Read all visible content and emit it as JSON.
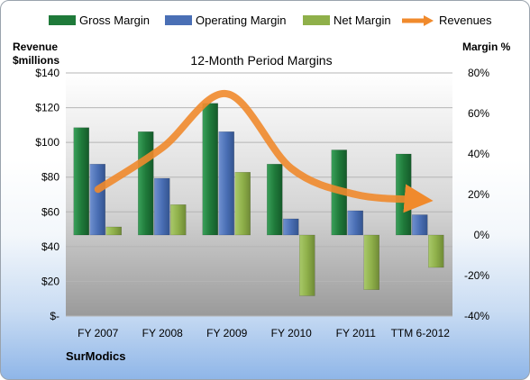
{
  "chart_data": {
    "type": "bar",
    "title": "12-Month Period Margins",
    "company": "SurModics",
    "left_axis_label_line1": "Revenue",
    "left_axis_label_line2": "$millions",
    "right_axis_label": "Margin %",
    "categories": [
      "FY 2007",
      "FY 2008",
      "FY 2009",
      "FY 2010",
      "FY 2011",
      "TTM 6-2012"
    ],
    "left_axis": {
      "ticks": [
        "$-",
        "$20",
        "$40",
        "$60",
        "$80",
        "$100",
        "$120",
        "$140"
      ],
      "ylim": [
        0,
        140
      ]
    },
    "right_axis": {
      "ticks": [
        "-40%",
        "-20%",
        "0%",
        "20%",
        "40%",
        "60%",
        "80%"
      ],
      "ylim": [
        -40,
        80
      ]
    },
    "series": [
      {
        "name": "Gross Margin",
        "axis": "right",
        "color": "#1f7a3a",
        "values": [
          53,
          51,
          65,
          35,
          42,
          40
        ]
      },
      {
        "name": "Operating Margin",
        "axis": "right",
        "color": "#4a6fb5",
        "values": [
          35,
          28,
          51,
          8,
          12,
          10
        ]
      },
      {
        "name": "Net Margin",
        "axis": "right",
        "color": "#8fb04a",
        "values": [
          4,
          15,
          31,
          -30,
          -27,
          -16
        ]
      },
      {
        "name": "Revenues",
        "axis": "left",
        "type": "line",
        "color": "#f08a2c",
        "values": [
          73,
          97,
          128,
          85,
          70,
          67
        ]
      }
    ],
    "grid": true,
    "legend_position": "top"
  }
}
